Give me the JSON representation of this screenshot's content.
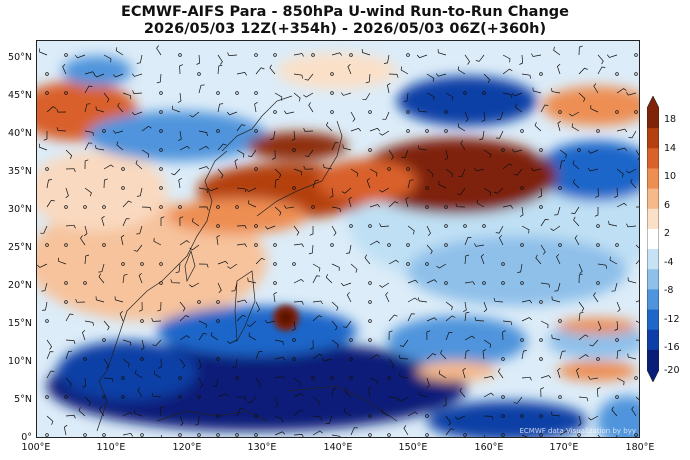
{
  "title": {
    "line1": "ECMWF-AIFS Para  - 850hPa U-wind Run-to-Run Change",
    "line2": "2026/05/03 12Z(+354h) - 2026/05/03 06Z(+360h)"
  },
  "map": {
    "region": "western North Pacific / East Asia",
    "lat_range": [
      0,
      53
    ],
    "lon_range": [
      100,
      180
    ],
    "lat_labels": [
      "50°N",
      "45°N",
      "40°N",
      "35°N",
      "30°N",
      "25°N",
      "20°N",
      "15°N",
      "10°N",
      "5°N",
      "0°"
    ],
    "lon_labels": [
      "100°E",
      "110°E",
      "120°E",
      "130°E",
      "140°E",
      "150°E",
      "160°E",
      "170°E",
      "180°E"
    ],
    "overlays": [
      "coastlines",
      "wind-barbs"
    ]
  },
  "colorbar": {
    "labels": [
      "18",
      "14",
      "10",
      "6",
      "2",
      "-4",
      "-8",
      "-12",
      "-16",
      "-20"
    ],
    "min": -20,
    "max": 20,
    "colors": [
      "#0a1e78",
      "#0d3fa6",
      "#1f66c9",
      "#4f94dc",
      "#8fc0ea",
      "#c8e2f5",
      "#ffffff",
      "#fbe0c8",
      "#f6b98a",
      "#ed8e52",
      "#d9612a",
      "#b44010",
      "#7f2408"
    ]
  },
  "credit": "ECMWF data Visualization by byy"
}
